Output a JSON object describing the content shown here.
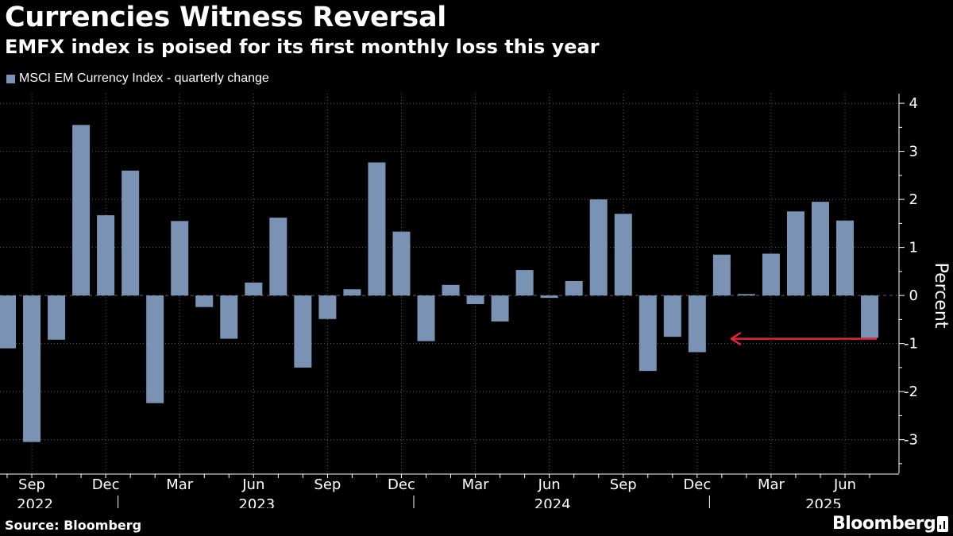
{
  "header": {
    "title": "Currencies Witness Reversal",
    "subtitle": "EMFX index is poised for its first monthly loss this year"
  },
  "legend": {
    "label": "MSCI EM Currency Index - quarterly change"
  },
  "footer": {
    "source": "Source: Bloomberg",
    "brand": "Bloomberg"
  },
  "colors": {
    "bar": "#7a93b5",
    "arrow": "#e0253a",
    "grid": "#5a5a5a",
    "background": "#000000"
  },
  "chart_data": {
    "type": "bar",
    "ylabel": "Percent",
    "ylim": [
      -3.7,
      4.2
    ],
    "yticks": [
      -3,
      -2,
      -1,
      0,
      1,
      2,
      3,
      4
    ],
    "x_tick_labels": [
      "Sep",
      "Dec",
      "Mar",
      "Jun",
      "Sep",
      "Dec",
      "Mar",
      "Jun",
      "Sep",
      "Dec",
      "Mar",
      "Jun"
    ],
    "x_tick_months": [
      "2022-09",
      "2022-12",
      "2023-03",
      "2023-06",
      "2023-09",
      "2023-12",
      "2024-03",
      "2024-06",
      "2024-09",
      "2024-12",
      "2025-03",
      "2025-06"
    ],
    "year_labels": [
      {
        "label": "2022",
        "month": "2022-09"
      },
      {
        "label": "2023",
        "month": "2023-06"
      },
      {
        "label": "2024",
        "month": "2024-06"
      },
      {
        "label": "2025",
        "month": "2025-05"
      }
    ],
    "year_dividers": [
      "2022-12-31",
      "2023-12-31",
      "2024-12-31"
    ],
    "categories": [
      "2022-08",
      "2022-09",
      "2022-10",
      "2022-11",
      "2022-12",
      "2023-01",
      "2023-02",
      "2023-03",
      "2023-04",
      "2023-05",
      "2023-06",
      "2023-07",
      "2023-08",
      "2023-09",
      "2023-10",
      "2023-11",
      "2023-12",
      "2024-01",
      "2024-02",
      "2024-03",
      "2024-04",
      "2024-05",
      "2024-06",
      "2024-07",
      "2024-08",
      "2024-09",
      "2024-10",
      "2024-11",
      "2024-12",
      "2025-01",
      "2025-02",
      "2025-03",
      "2025-04",
      "2025-05",
      "2025-06",
      "2025-07"
    ],
    "values": [
      -1.1,
      -3.05,
      -0.92,
      3.55,
      1.67,
      2.6,
      -2.24,
      1.55,
      -0.24,
      -0.9,
      0.27,
      1.62,
      -1.5,
      -0.49,
      0.13,
      2.77,
      1.33,
      -0.95,
      0.22,
      -0.18,
      -0.54,
      0.53,
      -0.05,
      0.3,
      2.0,
      1.7,
      -1.57,
      -0.86,
      -1.18,
      0.85,
      0.03,
      0.87,
      1.75,
      1.95,
      1.56,
      -0.88
    ],
    "annotation": {
      "type": "arrow",
      "from_month": "2025-07",
      "to_month": "2025-01",
      "value": -0.9
    }
  }
}
